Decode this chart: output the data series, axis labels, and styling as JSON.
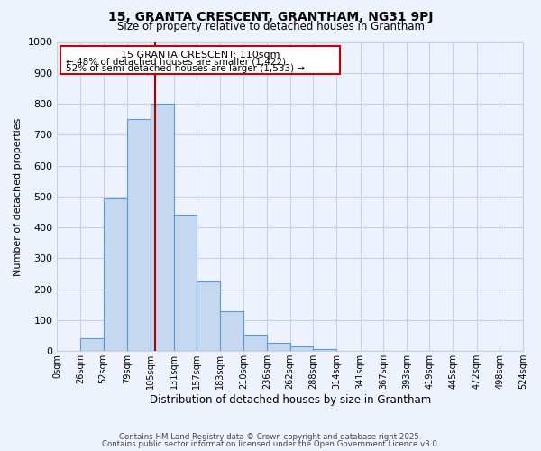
{
  "title": "15, GRANTA CRESCENT, GRANTHAM, NG31 9PJ",
  "subtitle": "Size of property relative to detached houses in Grantham",
  "xlabel": "Distribution of detached houses by size in Grantham",
  "ylabel": "Number of detached properties",
  "bar_labels": [
    "0sqm",
    "26sqm",
    "52sqm",
    "79sqm",
    "105sqm",
    "131sqm",
    "157sqm",
    "183sqm",
    "210sqm",
    "236sqm",
    "262sqm",
    "288sqm",
    "314sqm",
    "341sqm",
    "367sqm",
    "393sqm",
    "419sqm",
    "445sqm",
    "472sqm",
    "498sqm",
    "524sqm"
  ],
  "bar_values": [
    0,
    42,
    495,
    750,
    800,
    440,
    225,
    128,
    52,
    28,
    15,
    8,
    2,
    1,
    0,
    0,
    0,
    0,
    0,
    0,
    0
  ],
  "bin_edges": [
    0,
    26,
    52,
    79,
    105,
    131,
    157,
    183,
    210,
    236,
    262,
    288,
    314,
    341,
    367,
    393,
    419,
    445,
    472,
    498,
    524
  ],
  "bar_color": "#c5d8f0",
  "bar_edge_color": "#5b9bd5",
  "ylim": [
    0,
    1000
  ],
  "yticks": [
    0,
    100,
    200,
    300,
    400,
    500,
    600,
    700,
    800,
    900,
    1000
  ],
  "property_line_x": 110,
  "property_line_color": "#aa0000",
  "annotation_title": "15 GRANTA CRESCENT: 110sqm",
  "annotation_line1": "← 48% of detached houses are smaller (1,422)",
  "annotation_line2": "52% of semi-detached houses are larger (1,533) →",
  "annotation_box_color": "#ffffff",
  "annotation_box_edge_color": "#cc0000",
  "footer_line1": "Contains HM Land Registry data © Crown copyright and database right 2025.",
  "footer_line2": "Contains public sector information licensed under the Open Government Licence v3.0.",
  "background_color": "#eef2fc",
  "plot_background_color": "#eef2fc",
  "grid_color": "#c8d0e8"
}
